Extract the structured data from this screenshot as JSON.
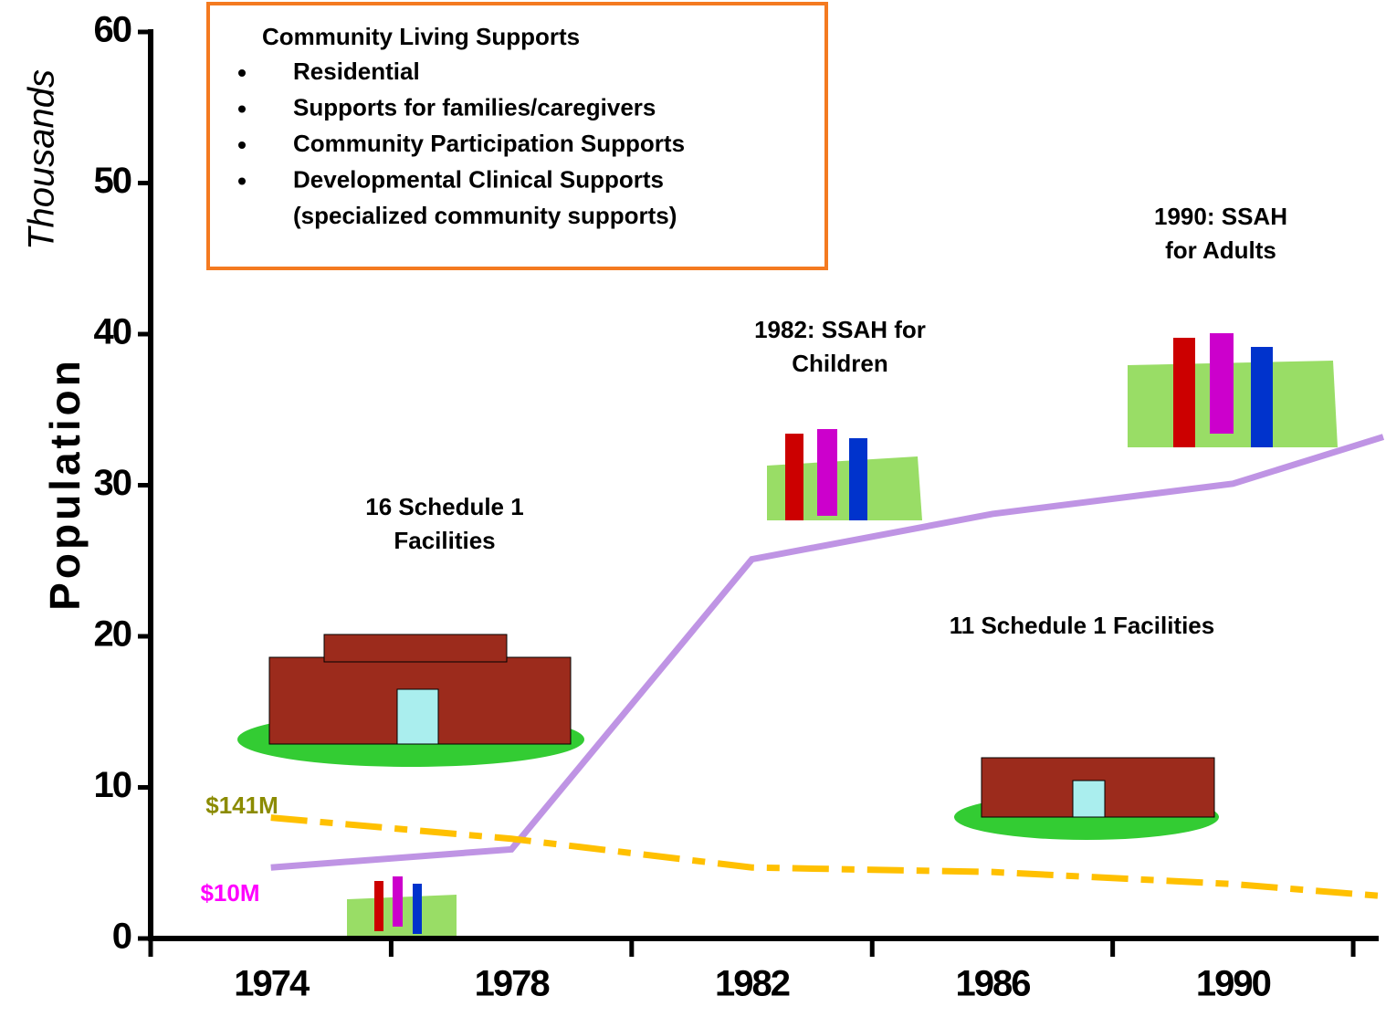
{
  "chart_data": {
    "type": "line",
    "y_label": "Population",
    "y_unit": "Thousands",
    "xlim": [
      1972,
      1992.5
    ],
    "xticks": [
      1974,
      1978,
      1982,
      1986,
      1990
    ],
    "x_tick_marks": [
      1972,
      1976,
      1980,
      1984,
      1988,
      1992
    ],
    "ylim": [
      0,
      60
    ],
    "yticks": [
      0,
      10,
      20,
      30,
      40,
      50,
      60
    ],
    "series": [
      {
        "color": "#bf94e4",
        "dashed": false,
        "x": [
          1974,
          1978,
          1982,
          1986,
          1990,
          1992.5
        ],
        "values": [
          4.7,
          5.9,
          25.1,
          28.1,
          30.1,
          33.2
        ]
      },
      {
        "color": "#ffc000",
        "dashed": true,
        "x": [
          1974,
          1978,
          1982,
          1986,
          1990,
          1992.5
        ],
        "values": [
          8.0,
          6.6,
          4.7,
          4.4,
          3.6,
          2.8
        ]
      }
    ],
    "annotations": [
      {
        "lines": [
          "16 Schedule 1",
          "Facilities"
        ]
      },
      {
        "lines": [
          "1982: SSAH for",
          "Children"
        ]
      },
      {
        "lines": [
          "1990: SSAH",
          "for Adults"
        ]
      },
      {
        "lines": [
          "11 Schedule 1 Facilities"
        ]
      },
      {
        "lines": [
          "$141M"
        ],
        "color": "#8b8b00"
      },
      {
        "lines": [
          "$10M"
        ],
        "color": "#ff00ff"
      }
    ],
    "box": {
      "title": "Community Living Supports",
      "items": [
        "Residential",
        "Supports for families/caregivers",
        "Community Participation Supports",
        "Developmental Clinical Supports"
      ],
      "subtext": "(specialized community supports)",
      "border": "#f47a20"
    }
  }
}
